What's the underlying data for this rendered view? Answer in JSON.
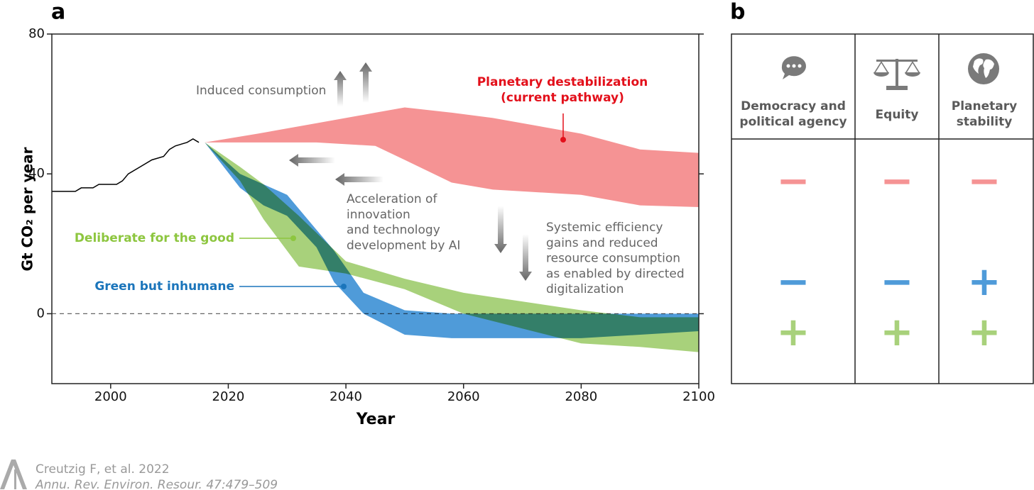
{
  "panel_labels": [
    "a",
    "b"
  ],
  "chart_data": {
    "type": "band",
    "xlabel": "Year",
    "ylabel": "Gt CO₂ per year",
    "xlim": [
      1990,
      2100
    ],
    "ylim": [
      -20,
      80
    ],
    "xticks": [
      2000,
      2020,
      2040,
      2060,
      2080,
      2100
    ],
    "yticks": [
      0,
      40,
      80
    ],
    "zero_line": 0,
    "grid": false,
    "history": {
      "color": "#000000",
      "x": [
        1990,
        1994,
        1995,
        1997,
        1998,
        2001,
        2002,
        2003,
        2005,
        2007,
        2009,
        2010,
        2011,
        2013,
        2014,
        2015
      ],
      "values": [
        35,
        35,
        36,
        36,
        37,
        37,
        38,
        40,
        42,
        44,
        45,
        47,
        48,
        49,
        50,
        49
      ]
    },
    "series": [
      {
        "name": "Planetary destabilization",
        "subname": "(current pathway)",
        "color": "#f59394",
        "label_color": "#e3101b",
        "x": [
          2016,
          2025,
          2035,
          2045,
          2050,
          2058,
          2065,
          2080,
          2090,
          2100
        ],
        "upper": [
          49,
          51.5,
          54.5,
          57.5,
          59,
          57.5,
          56,
          51.5,
          47,
          46
        ],
        "lower": [
          49,
          49,
          49,
          48,
          44,
          37.5,
          35.5,
          34,
          31,
          30.5
        ]
      },
      {
        "name": "Deliberate for the good",
        "color": "#a8d17b",
        "label_color": "#8dc63f",
        "x": [
          2016,
          2022,
          2026,
          2032,
          2040,
          2050,
          2060,
          2080,
          2090,
          2100
        ],
        "upper": [
          49,
          42,
          37,
          28,
          15,
          10,
          6,
          1,
          -1,
          -1
        ],
        "lower": [
          49,
          38,
          27,
          13.5,
          11.5,
          7,
          0,
          -8.5,
          -9.5,
          -11
        ]
      },
      {
        "name": "Green but inhumane",
        "color": "#4f9bd9",
        "label_color": "#1b75bb",
        "x": [
          2016,
          2022,
          2026,
          2030,
          2035,
          2038,
          2043,
          2050,
          2058,
          2080,
          2100
        ],
        "upper": [
          49,
          40,
          37,
          34,
          24,
          18,
          6,
          1,
          0,
          0,
          0
        ],
        "lower": [
          49,
          36,
          31,
          28,
          19,
          9,
          0,
          -6,
          -7,
          -7,
          -5
        ]
      }
    ],
    "annotations": [
      [
        "Induced consumption"
      ],
      [
        "Acceleration of",
        "innovation",
        "and technology",
        "development by AI"
      ],
      [
        "Systemic efficiency",
        "gains and reduced",
        "resource consumption",
        "as enabled by directed",
        "digitalization"
      ]
    ]
  },
  "table": {
    "headers": [
      [
        "Democracy and",
        "political agency"
      ],
      [
        "Equity"
      ],
      [
        "Planetary",
        "stability"
      ]
    ],
    "rows": [
      {
        "color": "#f59394",
        "cells": [
          "−",
          "−",
          "−"
        ]
      },
      {
        "color": "#4f9bd9",
        "cells": [
          "−",
          "−",
          "+"
        ]
      },
      {
        "color": "#a8d17b",
        "cells": [
          "+",
          "+",
          "+"
        ]
      }
    ]
  },
  "credit": [
    "Creutzig F, et al. 2022",
    "Annu. Rev. Environ. Resour. 47:479–509"
  ]
}
